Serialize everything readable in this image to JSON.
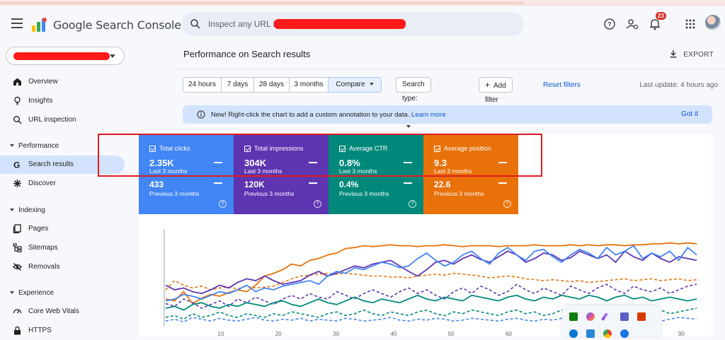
{
  "app": {
    "brand": "Google Search Console"
  },
  "search": {
    "placeholder": "Inspect any URL in"
  },
  "header": {
    "notifications_count": "23"
  },
  "sidebar": {
    "items": [
      {
        "label": "Overview"
      },
      {
        "label": "Insights"
      },
      {
        "label": "URL inspection"
      }
    ],
    "performance": {
      "section": "Performance",
      "items": [
        {
          "label": "Search results"
        },
        {
          "label": "Discover"
        }
      ]
    },
    "indexing": {
      "section": "Indexing",
      "items": [
        {
          "label": "Pages"
        },
        {
          "label": "Sitemaps"
        },
        {
          "label": "Removals"
        }
      ]
    },
    "experience": {
      "section": "Experience",
      "items": [
        {
          "label": "Core Web Vitals"
        },
        {
          "label": "HTTPS"
        }
      ]
    }
  },
  "main": {
    "title": "Performance on Search results",
    "export_label": "EXPORT",
    "date_ranges": [
      "24 hours",
      "7 days",
      "28 days",
      "3 months",
      "Compare"
    ],
    "search_type": "Search type: Web",
    "add_filter": "Add filter",
    "reset_filters": "Reset filters",
    "last_update": "Last update: 4 hours ago",
    "banner": {
      "message": "New! Right-click the chart to add a custom annotation to your data.",
      "link": "Learn more",
      "action": "Got it"
    }
  },
  "metrics": [
    {
      "title": "Total clicks",
      "value": "2.35K",
      "period": "Last 3 months",
      "prev_value": "433",
      "prev_period": "Previous 3 months",
      "color": "#4285f4"
    },
    {
      "title": "Total impressions",
      "value": "304K",
      "period": "Last 3 months",
      "prev_value": "120K",
      "prev_period": "Previous 3 months",
      "color": "#5e35b1"
    },
    {
      "title": "Average CTR",
      "value": "0.8%",
      "period": "Last 3 months",
      "prev_value": "0.4%",
      "prev_period": "Previous 3 months",
      "color": "#00897b"
    },
    {
      "title": "Average position",
      "value": "9.3",
      "period": "Last 3 months",
      "prev_value": "22.6",
      "prev_period": "Previous 3 months",
      "color": "#e8710a"
    }
  ],
  "chart_data": {
    "type": "line",
    "x_ticks": [
      "10",
      "20",
      "30",
      "40",
      "50",
      "60",
      "70",
      "80",
      "90"
    ],
    "series": [
      {
        "color": "#e8710a",
        "style": "solid",
        "values": [
          0.3,
          0.28,
          0.38,
          0.25,
          0.31,
          0.35,
          0.33,
          0.37,
          0.4,
          0.38,
          0.45,
          0.55,
          0.58,
          0.62,
          0.68,
          0.66,
          0.72,
          0.74,
          0.78,
          0.8,
          0.85,
          0.86,
          0.88,
          0.87,
          0.88,
          0.89,
          0.88,
          0.88,
          0.87,
          0.88,
          0.88,
          0.89,
          0.88,
          0.87,
          0.88,
          0.88,
          0.88,
          0.87,
          0.88,
          0.88,
          0.88,
          0.89,
          0.88,
          0.88,
          0.88,
          0.89,
          0.88,
          0.89,
          0.88,
          0.89,
          0.89,
          0.88,
          0.89,
          0.89,
          0.9,
          0.9,
          0.91,
          0.9,
          0.91,
          0.9
        ]
      },
      {
        "color": "#e8710a",
        "style": "dashed",
        "values": [
          0.4,
          0.5,
          0.45,
          0.42,
          0.44,
          0.4,
          0.42,
          0.43,
          0.41,
          0.44,
          0.42,
          0.43,
          0.44,
          0.48,
          0.52,
          0.55,
          0.56,
          0.57,
          0.58,
          0.57,
          0.58,
          0.57,
          0.56,
          0.55,
          0.55,
          0.54,
          0.54,
          0.53,
          0.55,
          0.56,
          0.57,
          0.56,
          0.58,
          0.57,
          0.56,
          0.55,
          0.53,
          0.54,
          0.55,
          0.54,
          0.52,
          0.51,
          0.5,
          0.51,
          0.5,
          0.49,
          0.5,
          0.48,
          0.49,
          0.5,
          0.51,
          0.52,
          0.5,
          0.51,
          0.52,
          0.5,
          0.51,
          0.52,
          0.5,
          0.51
        ]
      },
      {
        "color": "#5e35b1",
        "style": "solid",
        "values": [
          0.45,
          0.4,
          0.42,
          0.38,
          0.36,
          0.4,
          0.45,
          0.42,
          0.48,
          0.52,
          0.5,
          0.55,
          0.5,
          0.46,
          0.48,
          0.5,
          0.56,
          0.6,
          0.55,
          0.58,
          0.62,
          0.66,
          0.64,
          0.68,
          0.7,
          0.72,
          0.66,
          0.6,
          0.55,
          0.62,
          0.7,
          0.72,
          0.68,
          0.74,
          0.78,
          0.73,
          0.7,
          0.76,
          0.82,
          0.78,
          0.7,
          0.74,
          0.8,
          0.78,
          0.72,
          0.75,
          0.82,
          0.78,
          0.74,
          0.78,
          0.7,
          0.82,
          0.76,
          0.72,
          0.8,
          0.74,
          0.7,
          0.76,
          0.74,
          0.72
        ]
      },
      {
        "color": "#4285f4",
        "style": "solid",
        "values": [
          0.28,
          0.3,
          0.35,
          0.33,
          0.3,
          0.34,
          0.38,
          0.36,
          0.4,
          0.45,
          0.38,
          0.42,
          0.4,
          0.44,
          0.46,
          0.48,
          0.5,
          0.46,
          0.55,
          0.6,
          0.58,
          0.64,
          0.62,
          0.66,
          0.7,
          0.68,
          0.64,
          0.66,
          0.74,
          0.8,
          0.72,
          0.66,
          0.7,
          0.78,
          0.82,
          0.74,
          0.68,
          0.8,
          0.86,
          0.78,
          0.72,
          0.82,
          0.84,
          0.76,
          0.7,
          0.78,
          0.84,
          0.8,
          0.74,
          0.86,
          0.78,
          0.82,
          0.88,
          0.74,
          0.8,
          0.76,
          0.82,
          0.72,
          0.86,
          0.78
        ]
      },
      {
        "color": "#5e35b1",
        "style": "dashed",
        "values": [
          0.25,
          0.22,
          0.3,
          0.26,
          0.2,
          0.24,
          0.28,
          0.22,
          0.3,
          0.26,
          0.32,
          0.28,
          0.24,
          0.3,
          0.34,
          0.3,
          0.36,
          0.32,
          0.3,
          0.38,
          0.34,
          0.3,
          0.36,
          0.4,
          0.36,
          0.32,
          0.38,
          0.42,
          0.36,
          0.4,
          0.34,
          0.3,
          0.38,
          0.42,
          0.36,
          0.44,
          0.4,
          0.34,
          0.38,
          0.46,
          0.4,
          0.36,
          0.42,
          0.38,
          0.34,
          0.44,
          0.4,
          0.36,
          0.42,
          0.46,
          0.4,
          0.36,
          0.44,
          0.4,
          0.38,
          0.42,
          0.36,
          0.4,
          0.44,
          0.46
        ]
      },
      {
        "color": "#00897b",
        "style": "solid",
        "values": [
          0.2,
          0.22,
          0.18,
          0.24,
          0.26,
          0.22,
          0.2,
          0.24,
          0.22,
          0.26,
          0.24,
          0.22,
          0.26,
          0.28,
          0.24,
          0.22,
          0.26,
          0.3,
          0.26,
          0.24,
          0.28,
          0.32,
          0.28,
          0.26,
          0.3,
          0.28,
          0.26,
          0.3,
          0.34,
          0.3,
          0.28,
          0.32,
          0.3,
          0.28,
          0.34,
          0.32,
          0.3,
          0.28,
          0.32,
          0.34,
          0.3,
          0.28,
          0.32,
          0.3,
          0.34,
          0.32,
          0.3,
          0.34,
          0.32,
          0.28,
          0.32,
          0.34,
          0.3,
          0.32,
          0.28,
          0.3,
          0.32,
          0.3,
          0.28,
          0.3
        ]
      },
      {
        "color": "#00897b",
        "style": "dashed",
        "values": [
          0.1,
          0.12,
          0.08,
          0.14,
          0.1,
          0.12,
          0.16,
          0.12,
          0.1,
          0.14,
          0.12,
          0.1,
          0.14,
          0.12,
          0.16,
          0.14,
          0.12,
          0.1,
          0.14,
          0.16,
          0.12,
          0.14,
          0.18,
          0.14,
          0.12,
          0.16,
          0.14,
          0.12,
          0.16,
          0.18,
          0.14,
          0.12,
          0.16,
          0.14,
          0.18,
          0.16,
          0.14,
          0.12,
          0.16,
          0.18,
          0.14,
          0.16,
          0.12,
          0.14,
          0.18,
          0.16,
          0.14,
          0.12,
          0.16,
          0.18,
          0.14,
          0.16,
          0.14,
          0.12,
          0.16,
          0.18,
          0.14,
          0.16,
          0.18,
          0.2
        ]
      },
      {
        "color": "#4285f4",
        "style": "dashed",
        "values": [
          0.06,
          0.08,
          0.05,
          0.1,
          0.08,
          0.06,
          0.09,
          0.07,
          0.06,
          0.08,
          0.1,
          0.07,
          0.06,
          0.08,
          0.07,
          0.09,
          0.06,
          0.08,
          0.07,
          0.06,
          0.09,
          0.08,
          0.06,
          0.07,
          0.08,
          0.1,
          0.07,
          0.06,
          0.08,
          0.07,
          0.09,
          0.08,
          0.06,
          0.07,
          0.09,
          0.08,
          0.07,
          0.06,
          0.08,
          0.09,
          0.07,
          0.06,
          0.08,
          0.07,
          0.09,
          0.08,
          0.06,
          0.07,
          0.09,
          0.08,
          0.07,
          0.06,
          0.08,
          0.09,
          0.07,
          0.06,
          0.08,
          0.1,
          0.09,
          0.08
        ]
      }
    ]
  }
}
